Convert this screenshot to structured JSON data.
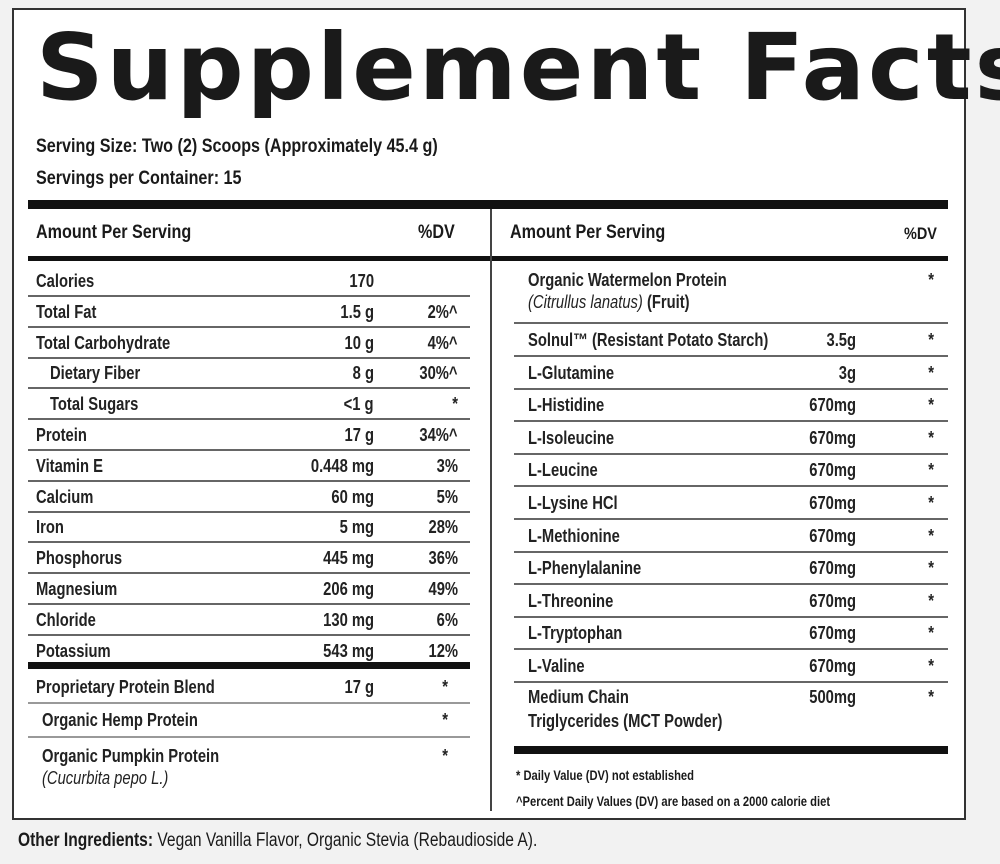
{
  "title": "Supplement Facts",
  "serving_size": "Serving Size: Two (2) Scoops (Approximately 45.4 g)",
  "servings_per_container": "Servings per Container: 15",
  "left": {
    "header_amount": "Amount Per Serving",
    "header_dv": "%DV",
    "rows": [
      {
        "name": "Calories",
        "amount": "170",
        "dv": ""
      },
      {
        "name": "Total Fat",
        "amount": "1.5 g",
        "dv": "2%^"
      },
      {
        "name": "Total Carbohydrate",
        "amount": "10 g",
        "dv": "4%^"
      },
      {
        "name": "Dietary Fiber",
        "amount": "8 g",
        "dv": "30%^"
      },
      {
        "name": "Total Sugars",
        "amount": "<1 g",
        "dv": "*"
      },
      {
        "name": "Protein",
        "amount": "17 g",
        "dv": "34%^"
      },
      {
        "name": "Vitamin E",
        "amount": "0.448 mg",
        "dv": "3%"
      },
      {
        "name": "Calcium",
        "amount": "60 mg",
        "dv": "5%"
      },
      {
        "name": "Iron",
        "amount": "5 mg",
        "dv": "28%"
      },
      {
        "name": "Phosphorus",
        "amount": "445 mg",
        "dv": "36%"
      },
      {
        "name": "Magnesium",
        "amount": "206 mg",
        "dv": "49%"
      },
      {
        "name": "Chloride",
        "amount": "130 mg",
        "dv": "6%"
      },
      {
        "name": "Potassium",
        "amount": "543 mg",
        "dv": "12%"
      }
    ],
    "blend": {
      "name": "Proprietary Protein Blend",
      "amount": "17 g",
      "dv": "*"
    },
    "blend_items": [
      {
        "name": "Organic Hemp Protein",
        "dv": "*"
      },
      {
        "name": "Organic Pumpkin Protein",
        "latin": "(Cucurbita pepo L.)",
        "dv": "*"
      }
    ]
  },
  "right": {
    "header_amount": "Amount Per Serving",
    "header_dv": "%DV",
    "watermelon": {
      "name": "Organic Watermelon Protein",
      "latin": "(Citrullus lanatus)",
      "suffix": "(Fruit)",
      "dv": "*"
    },
    "rows": [
      {
        "name": "Solnul™ (Resistant Potato Starch)",
        "amount": "3.5g",
        "dv": "*"
      },
      {
        "name": "L-Glutamine",
        "amount": "3g",
        "dv": "*"
      },
      {
        "name": "L-Histidine",
        "amount": "670mg",
        "dv": "*"
      },
      {
        "name": "L-Isoleucine",
        "amount": "670mg",
        "dv": "*"
      },
      {
        "name": "L-Leucine",
        "amount": "670mg",
        "dv": "*"
      },
      {
        "name": "L-Lysine HCl",
        "amount": "670mg",
        "dv": "*"
      },
      {
        "name": "L-Methionine",
        "amount": "670mg",
        "dv": "*"
      },
      {
        "name": "L-Phenylalanine",
        "amount": "670mg",
        "dv": "*"
      },
      {
        "name": "L-Threonine",
        "amount": "670mg",
        "dv": "*"
      },
      {
        "name": "L-Tryptophan",
        "amount": "670mg",
        "dv": "*"
      },
      {
        "name": "L-Valine",
        "amount": "670mg",
        "dv": "*"
      }
    ],
    "mct": {
      "line1": "Medium Chain",
      "line2": "Triglycerides (MCT Powder)",
      "amount": "500mg",
      "dv": "*"
    },
    "footnote1": "* Daily Value (DV) not established",
    "footnote2": "^Percent Daily Values (DV) are based on a 2000 calorie diet"
  },
  "other_label": "Other Ingredients:",
  "other_text": " Vegan Vanilla Flavor, Organic Stevia (Rebaudioside A)."
}
